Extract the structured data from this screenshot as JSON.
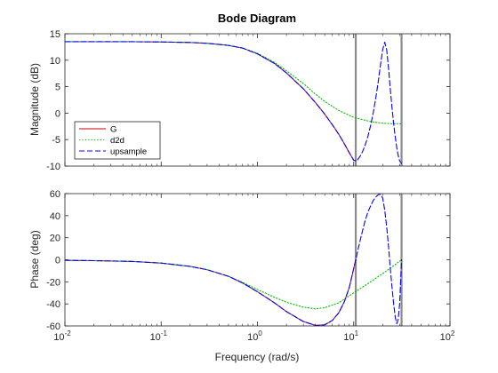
{
  "chart_data": {
    "type": "line",
    "title": "Bode Diagram",
    "xlabel": "Frequency (rad/s)",
    "xscale": "log",
    "xlim": [
      0.01,
      100
    ],
    "x_ticks": [
      {
        "base": "10",
        "exp": "-2"
      },
      {
        "base": "10",
        "exp": "-1"
      },
      {
        "base": "10",
        "exp": "0"
      },
      {
        "base": "10",
        "exp": "1"
      },
      {
        "base": "10",
        "exp": "2"
      }
    ],
    "nyquist_lines": [
      10.5,
      31.4
    ],
    "nyquist_color": "#8c8c8c",
    "legend": {
      "placement": "lower-left",
      "entries": [
        "G",
        "d2d",
        "upsample"
      ]
    },
    "colors": {
      "G": "#cc0000",
      "d2d": "#00bb00",
      "upsample": "#0000ff"
    },
    "panels": [
      {
        "name": "magnitude",
        "ylabel": "Magnitude (dB)",
        "ylim": [
          -10,
          15
        ],
        "y_ticks": [
          "15",
          "10",
          "5",
          "0",
          "-5",
          "-10"
        ],
        "y_tick_values": [
          15,
          10,
          5,
          0,
          -5,
          -10
        ],
        "series": [
          {
            "name": "G",
            "style": "solid",
            "x": [
              0.01,
              0.05,
              0.1,
              0.2,
              0.3,
              0.5,
              0.7,
              1.0,
              1.5,
              2.0,
              3.0,
              4.0,
              5.0,
              6.0,
              7.0,
              8.0,
              9.0,
              10.0,
              10.5
            ],
            "y": [
              13.5,
              13.5,
              13.45,
              13.35,
              13.2,
              12.8,
              12.3,
              11.2,
              9.4,
              7.6,
              4.6,
              2.0,
              -0.2,
              -2.2,
              -4.0,
              -5.8,
              -7.5,
              -8.9,
              -9.0
            ]
          },
          {
            "name": "d2d",
            "style": "dotted",
            "x": [
              0.01,
              0.05,
              0.1,
              0.2,
              0.3,
              0.5,
              0.7,
              1.0,
              1.5,
              2.0,
              3.0,
              4.0,
              5.0,
              7.0,
              10.0,
              15.0,
              20.0,
              25.0,
              31.4
            ],
            "y": [
              13.5,
              13.5,
              13.45,
              13.35,
              13.2,
              12.8,
              12.3,
              11.3,
              9.6,
              8.0,
              5.6,
              3.6,
              2.2,
              0.5,
              -0.8,
              -1.6,
              -1.9,
              -2.0,
              -2.0
            ]
          },
          {
            "name": "upsample",
            "style": "dashed",
            "x": [
              0.01,
              0.05,
              0.1,
              0.2,
              0.3,
              0.5,
              0.7,
              1.0,
              1.5,
              2.0,
              3.0,
              4.0,
              5.0,
              6.0,
              7.0,
              8.0,
              9.0,
              10.0,
              10.5,
              11.0,
              12.0,
              13.0,
              14.0,
              15.0,
              16.0,
              17.0,
              18.0,
              19.0,
              20.0,
              21.0,
              22.0,
              23.0,
              24.0,
              25.0,
              26.0,
              27.0,
              28.0,
              29.0,
              30.0,
              31.4
            ],
            "y": [
              13.5,
              13.5,
              13.45,
              13.35,
              13.2,
              12.8,
              12.3,
              11.2,
              9.4,
              7.6,
              4.6,
              2.0,
              -0.2,
              -2.2,
              -4.0,
              -5.8,
              -7.5,
              -8.9,
              -9.0,
              -8.8,
              -7.8,
              -6.3,
              -4.5,
              -2.3,
              0.2,
              3.0,
              6.0,
              9.2,
              12.0,
              13.4,
              12.0,
              8.5,
              4.5,
              1.0,
              -2.0,
              -4.5,
              -6.5,
              -8.0,
              -9.0,
              -9.5
            ]
          }
        ]
      },
      {
        "name": "phase",
        "ylabel": "Phase (deg)",
        "ylim": [
          -60,
          60
        ],
        "y_ticks": [
          "60",
          "40",
          "20",
          "0",
          "-20",
          "-40",
          "-60"
        ],
        "y_tick_values": [
          60,
          40,
          20,
          0,
          -20,
          -40,
          -60
        ],
        "series": [
          {
            "name": "G",
            "style": "solid",
            "x": [
              0.01,
              0.02,
              0.05,
              0.1,
              0.2,
              0.3,
              0.5,
              0.7,
              1.0,
              1.5,
              2.0,
              3.0,
              4.0,
              5.0,
              6.0,
              7.0,
              8.0,
              9.0,
              10.0,
              10.5
            ],
            "y": [
              -0.5,
              -0.8,
              -1.5,
              -3.0,
              -6.0,
              -9.0,
              -15.0,
              -21.0,
              -29.0,
              -39.0,
              -47.0,
              -56.0,
              -59.5,
              -59.0,
              -55.0,
              -48.0,
              -38.0,
              -25.0,
              -8.0,
              0.0
            ]
          },
          {
            "name": "d2d",
            "style": "dotted",
            "x": [
              0.01,
              0.02,
              0.05,
              0.1,
              0.2,
              0.3,
              0.5,
              0.7,
              1.0,
              1.5,
              2.0,
              3.0,
              4.0,
              5.0,
              7.0,
              10.0,
              15.0,
              20.0,
              25.0,
              31.4
            ],
            "y": [
              -0.5,
              -0.8,
              -1.5,
              -3.0,
              -6.0,
              -9.0,
              -15.0,
              -20.5,
              -27.0,
              -34.0,
              -38.5,
              -43.0,
              -44.5,
              -43.5,
              -39.0,
              -30.0,
              -20.0,
              -12.5,
              -6.5,
              0.0
            ]
          },
          {
            "name": "upsample",
            "style": "dashed",
            "x": [
              0.01,
              0.02,
              0.05,
              0.1,
              0.2,
              0.3,
              0.5,
              0.7,
              1.0,
              1.5,
              2.0,
              3.0,
              4.0,
              5.0,
              6.0,
              7.0,
              8.0,
              9.0,
              10.0,
              10.5,
              11.0,
              12.0,
              13.0,
              14.0,
              15.0,
              16.0,
              17.0,
              18.0,
              19.0,
              20.0,
              21.0,
              22.0,
              23.0,
              24.0,
              25.0,
              26.0,
              27.0,
              28.0,
              29.0,
              30.0,
              31.4
            ],
            "y": [
              -0.5,
              -0.8,
              -1.5,
              -3.0,
              -6.0,
              -9.0,
              -15.0,
              -21.0,
              -29.0,
              -39.0,
              -47.0,
              -56.0,
              -59.5,
              -59.0,
              -55.0,
              -48.0,
              -38.0,
              -25.0,
              -8.0,
              0.0,
              8.0,
              22.0,
              34.0,
              43.0,
              49.0,
              54.0,
              57.0,
              59.0,
              59.5,
              56.0,
              45.0,
              30.0,
              12.0,
              -8.0,
              -25.0,
              -40.0,
              -52.0,
              -58.0,
              -54.0,
              -40.0,
              0.0
            ]
          }
        ]
      }
    ]
  }
}
